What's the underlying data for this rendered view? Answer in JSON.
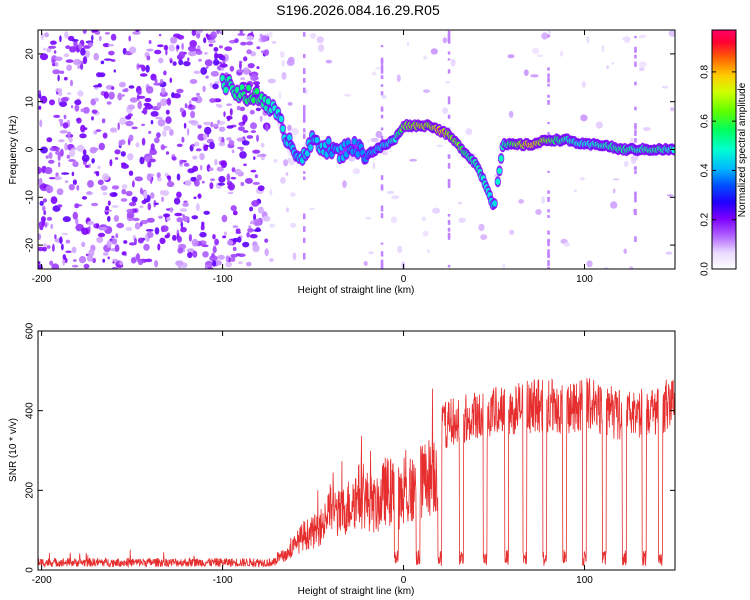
{
  "title": "S196.2026.084.16.29.R05",
  "colors": {
    "spectrum": "#7d00ff",
    "snr_line": "#e62e2e",
    "axis": "#000000"
  },
  "chart_data": [
    {
      "type": "heatmap",
      "name": "spectrogram",
      "xlabel": "Height of straight line (km)",
      "ylabel": "Frequency (Hz)",
      "xlim": [
        -202,
        150
      ],
      "ylim": [
        -25,
        25
      ],
      "x_ticks": [
        {
          "value": -200,
          "label": "-200"
        },
        {
          "value": -100,
          "label": "-100"
        },
        {
          "value": 0,
          "label": "0"
        },
        {
          "value": 100,
          "label": "100"
        }
      ],
      "y_ticks": [
        {
          "value": 20,
          "label": "20"
        },
        {
          "value": 10,
          "label": "10"
        },
        {
          "value": 0,
          "label": "0"
        },
        {
          "value": -10,
          "label": "-10"
        },
        {
          "value": -20,
          "label": "-20"
        }
      ],
      "colorbar": {
        "label": "Normalized spectral amplitude",
        "range": [
          0,
          0.97
        ],
        "ticks": [
          {
            "value": 0.0,
            "label": "0.0"
          },
          {
            "value": 0.2,
            "label": "0.2"
          },
          {
            "value": 0.4,
            "label": "0.4"
          },
          {
            "value": 0.6,
            "label": "0.6"
          },
          {
            "value": 0.8,
            "label": "0.8"
          }
        ]
      },
      "signal_track": {
        "x": [
          -100,
          -90,
          -82,
          -75,
          -70,
          -65,
          -60,
          -55,
          -50,
          -45,
          -40,
          -35,
          -30,
          -25,
          -20,
          -15,
          -10,
          -5,
          0,
          5,
          10,
          15,
          20,
          25,
          30,
          35,
          40,
          45,
          50,
          55,
          60,
          70,
          80,
          90,
          100,
          110,
          120,
          130,
          140,
          150
        ],
        "y": [
          14,
          12,
          11,
          10,
          7,
          3,
          0,
          -2,
          2,
          1,
          0,
          -1,
          1,
          0,
          -1,
          0,
          1,
          2,
          5,
          5,
          5,
          5,
          4,
          3,
          1,
          -1,
          -3,
          -7,
          -12,
          1,
          1,
          1,
          2,
          2,
          1,
          1,
          0,
          0,
          0,
          0
        ],
        "amplitude": [
          0.5,
          0.55,
          0.6,
          0.5,
          0.45,
          0.4,
          0.35,
          0.4,
          0.35,
          0.4,
          0.3,
          0.35,
          0.3,
          0.3,
          0.3,
          0.35,
          0.4,
          0.45,
          0.65,
          0.7,
          0.75,
          0.7,
          0.85,
          0.7,
          0.65,
          0.55,
          0.5,
          0.45,
          0.4,
          0.5,
          0.6,
          0.85,
          0.65,
          0.5,
          0.45,
          0.5,
          0.55,
          0.5,
          0.55,
          0.45
        ]
      }
    },
    {
      "type": "line",
      "name": "snr",
      "xlabel": "Height of straight line (km)",
      "ylabel": "SNR (10 * v/v)",
      "xlim": [
        -202,
        150
      ],
      "ylim": [
        0,
        600
      ],
      "x_ticks": [
        {
          "value": -200,
          "label": "-200"
        },
        {
          "value": -100,
          "label": "-100"
        },
        {
          "value": 0,
          "label": "0"
        },
        {
          "value": 100,
          "label": "100"
        }
      ],
      "y_ticks": [
        {
          "value": 0,
          "label": "0"
        },
        {
          "value": 200,
          "label": "200"
        },
        {
          "value": 400,
          "label": "400"
        },
        {
          "value": 600,
          "label": "600"
        }
      ],
      "envelope": {
        "x": [
          -202,
          -150,
          -100,
          -75,
          -65,
          -60,
          -55,
          -50,
          -45,
          -40,
          -35,
          -30,
          -25,
          -20,
          -15,
          -10,
          -5,
          0,
          5,
          10,
          15,
          20,
          30,
          40,
          50,
          60,
          70,
          80,
          90,
          100,
          110,
          120,
          130,
          140,
          150
        ],
        "y": [
          22,
          25,
          28,
          40,
          60,
          100,
          140,
          150,
          180,
          250,
          220,
          260,
          300,
          280,
          250,
          320,
          300,
          280,
          320,
          350,
          380,
          400,
          420,
          430,
          440,
          450,
          455,
          460,
          440,
          470,
          450,
          430,
          440,
          450,
          460
        ]
      },
      "dropouts_x": [
        -4,
        8,
        20,
        32,
        45,
        57,
        67,
        78,
        89,
        100,
        111,
        122,
        133,
        142
      ]
    }
  ]
}
